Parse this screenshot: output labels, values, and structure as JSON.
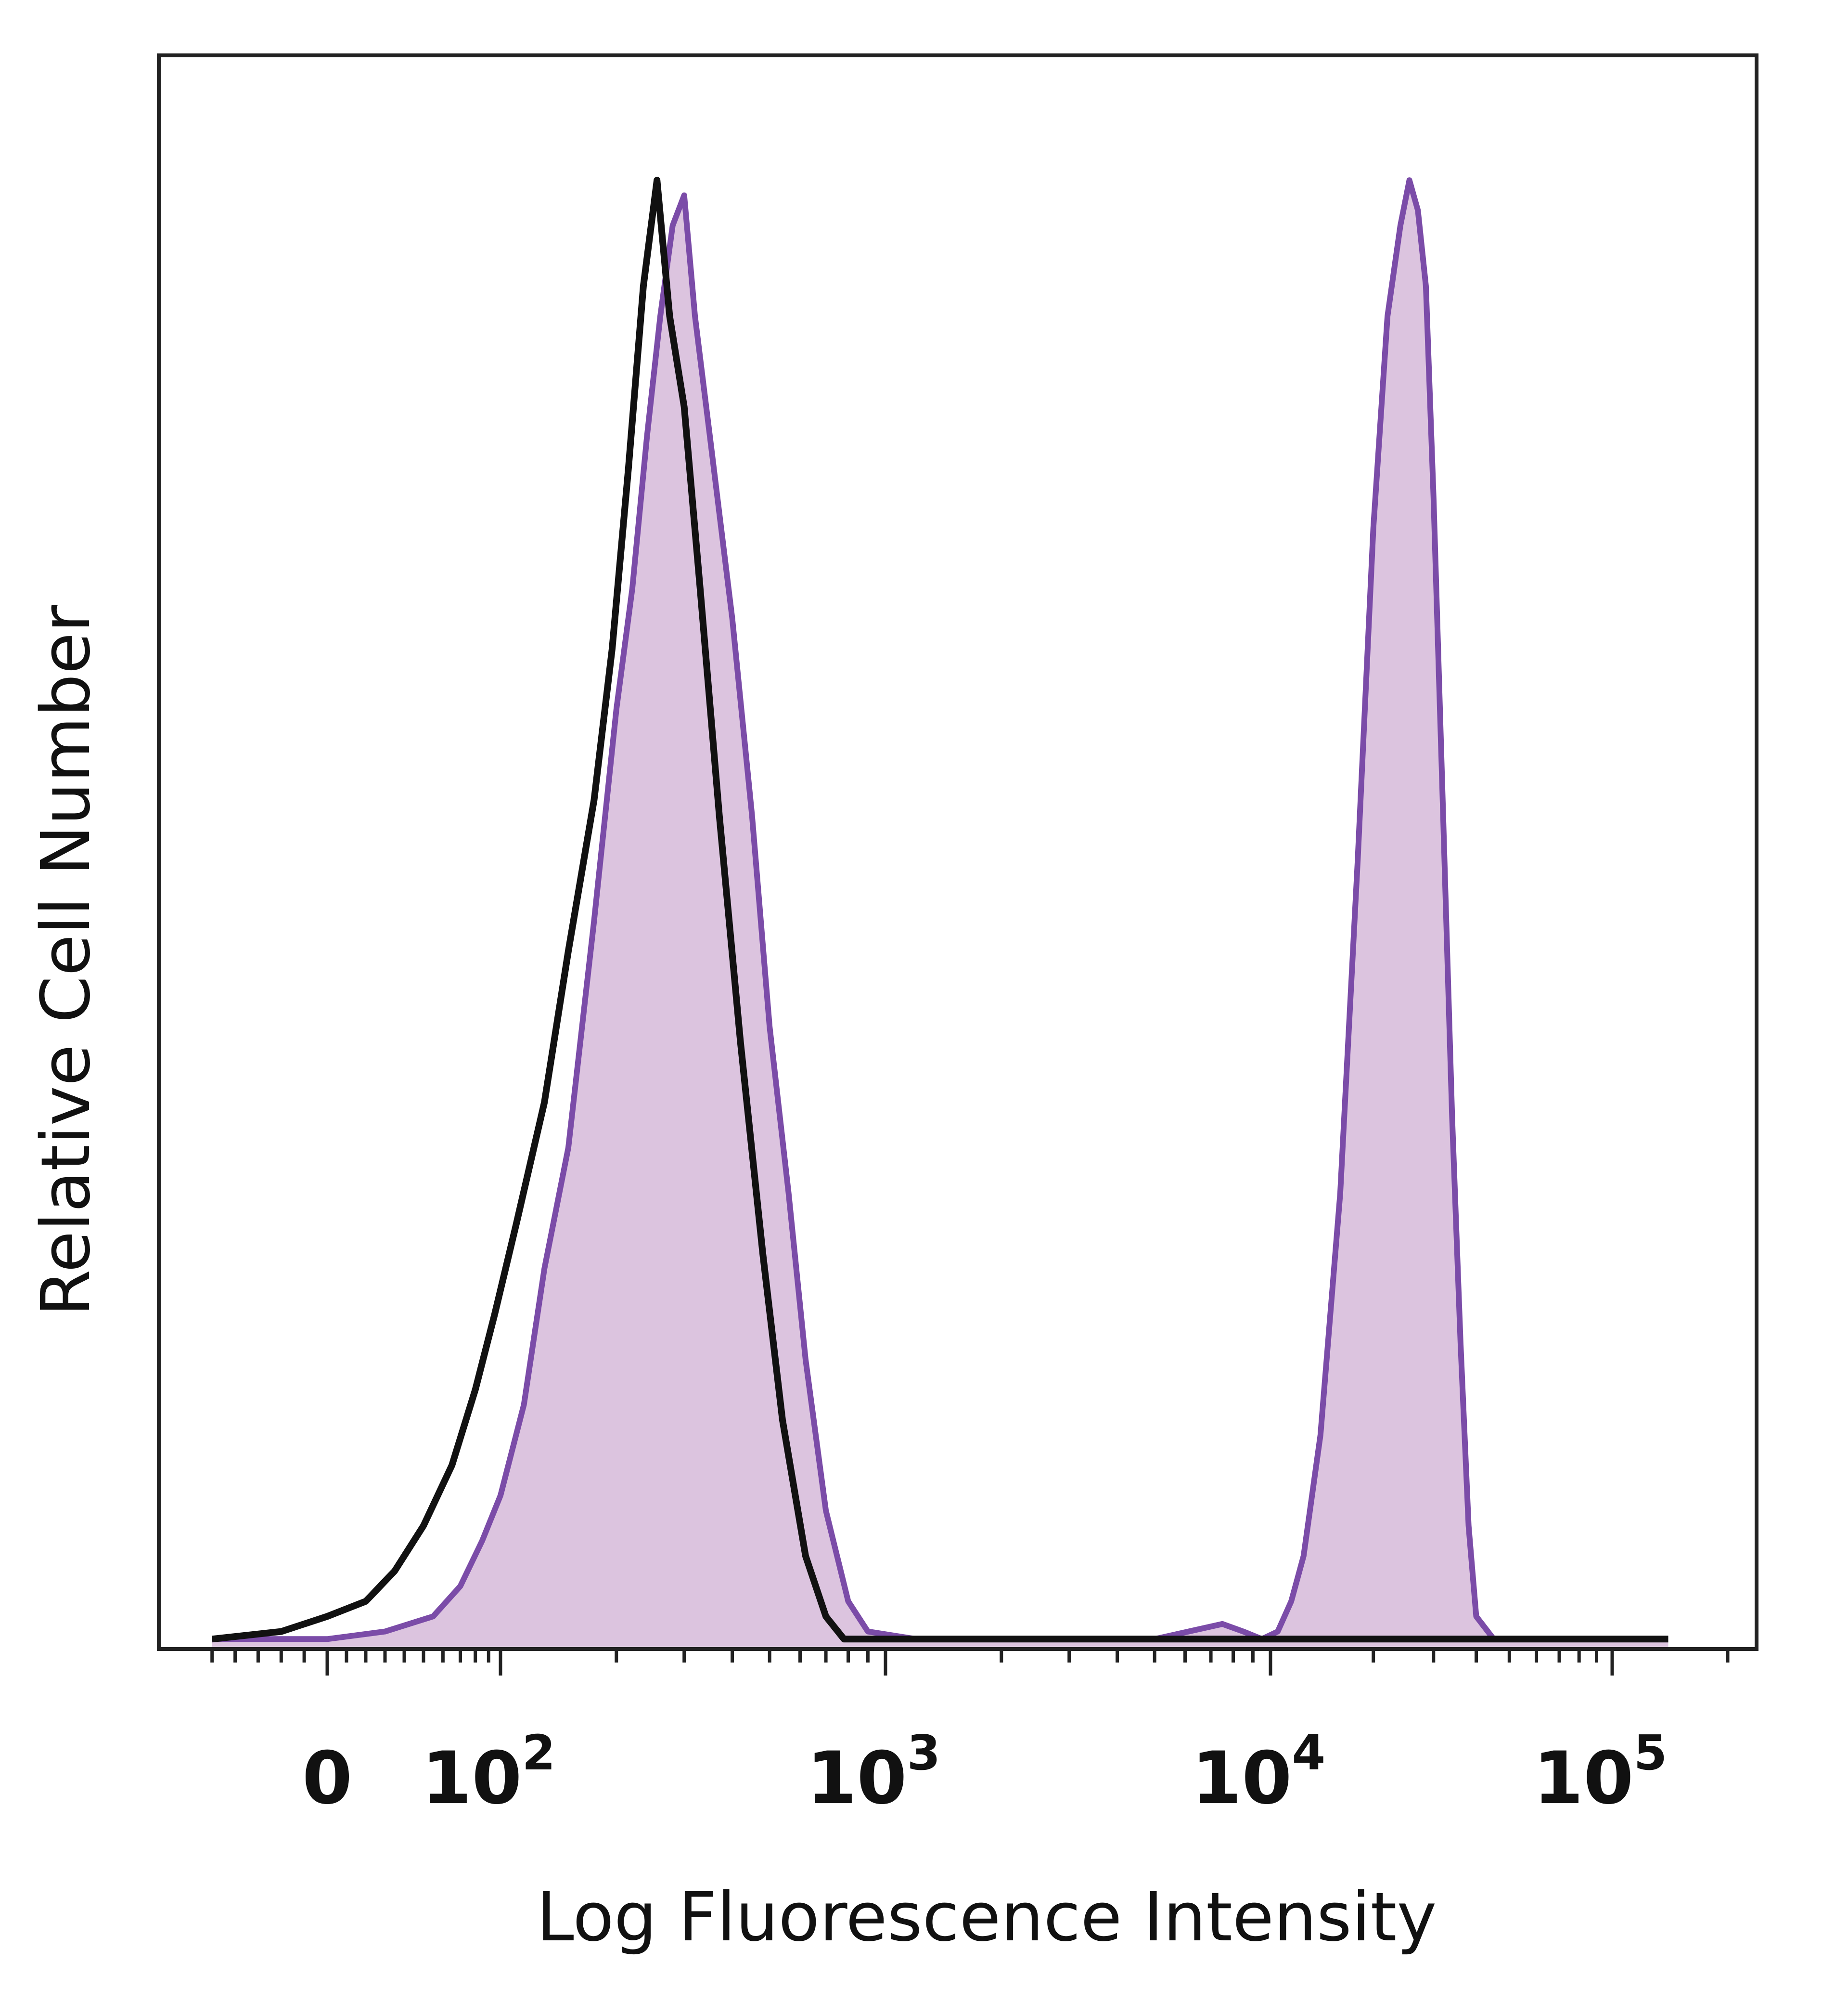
{
  "chart_data": {
    "type": "area",
    "xlabel": "Log Fluorescence Intensity",
    "ylabel": "Relative Cell Number",
    "x_scale": "biexponential",
    "xlim": [
      -70,
      200000
    ],
    "ylim": [
      0,
      100
    ],
    "grid": false,
    "x_ticks": [
      {
        "value": 0,
        "base": "0",
        "exp": ""
      },
      {
        "value": 100,
        "base": "10",
        "exp": "2"
      },
      {
        "value": 1000,
        "base": "10",
        "exp": "3"
      },
      {
        "value": 10000,
        "base": "10",
        "exp": "4"
      },
      {
        "value": 100000,
        "base": "10",
        "exp": "5"
      }
    ],
    "colors": {
      "stained_line": "#7b4ca8",
      "stained_fill": "#dcc4df",
      "control_line": "#111111",
      "frame": "#222222"
    },
    "series": [
      {
        "style": "filled",
        "x": [
          -50,
          0,
          30,
          55,
          70,
          85,
          100,
          115,
          130,
          150,
          175,
          200,
          220,
          240,
          260,
          280,
          300,
          320,
          350,
          400,
          450,
          500,
          560,
          620,
          700,
          800,
          900,
          1200,
          2000,
          3000,
          5000,
          7500,
          8500,
          9500,
          10500,
          11500,
          12500,
          14000,
          16000,
          18000,
          20000,
          22000,
          24000,
          25500,
          27000,
          28500,
          30000,
          32000,
          34000,
          36000,
          38000,
          40000,
          45000,
          60000,
          100000,
          140000
        ],
        "y": [
          0.5,
          0.5,
          1,
          2,
          4,
          7,
          10,
          16,
          25,
          33,
          48,
          62,
          70,
          80,
          88,
          94,
          96,
          88,
          80,
          68,
          55,
          41,
          30,
          19,
          9,
          3,
          1,
          0.5,
          0.5,
          0.5,
          0.5,
          1.5,
          1,
          0.5,
          1,
          3,
          6,
          14,
          30,
          52,
          74,
          88,
          94,
          97,
          95,
          90,
          76,
          55,
          35,
          20,
          8,
          2,
          0.5,
          0.5,
          0.5,
          0.5
        ]
      },
      {
        "style": "outline",
        "x": [
          -50,
          -20,
          0,
          20,
          35,
          50,
          65,
          80,
          95,
          110,
          130,
          150,
          175,
          195,
          215,
          235,
          255,
          275,
          300,
          330,
          370,
          420,
          480,
          540,
          620,
          700,
          780,
          1000,
          2000,
          5000,
          10000,
          20000,
          50000,
          100000,
          140000
        ],
        "y": [
          0.5,
          1,
          2,
          3,
          5,
          8,
          12,
          17,
          22,
          28,
          36,
          46,
          56,
          66,
          78,
          90,
          97,
          88,
          82,
          70,
          55,
          40,
          26,
          15,
          6,
          2,
          0.5,
          0.5,
          0.5,
          0.5,
          0.5,
          0.5,
          0.5,
          0.5,
          0.5
        ]
      }
    ]
  }
}
